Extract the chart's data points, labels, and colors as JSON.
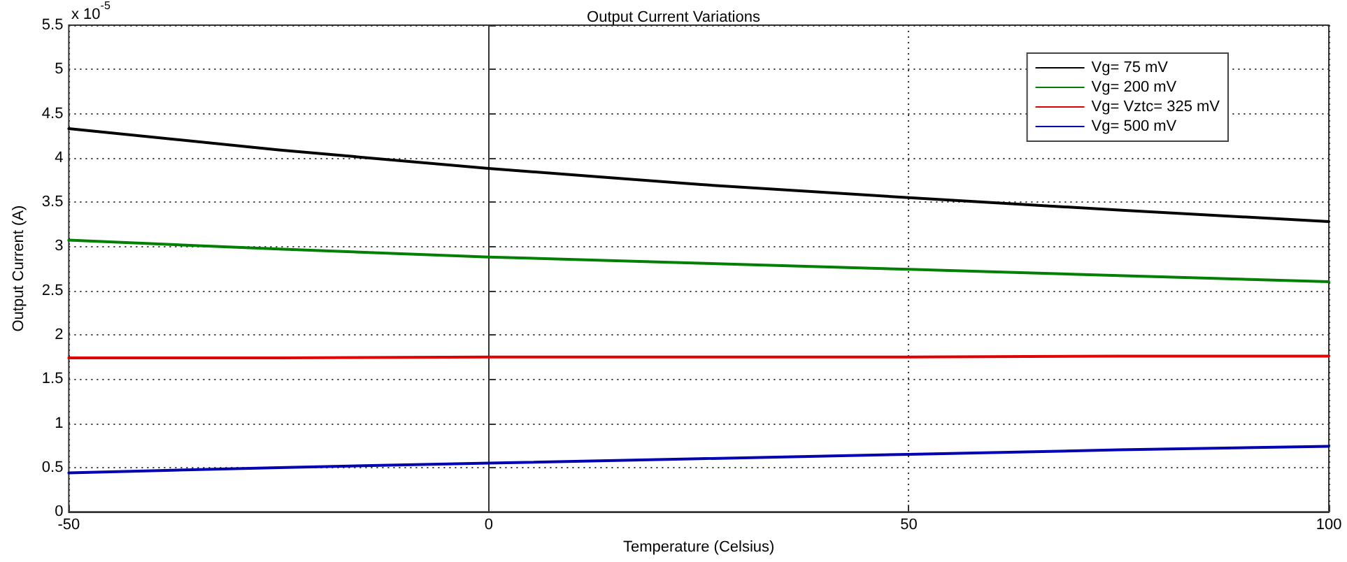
{
  "chart_data": {
    "type": "line",
    "title": "Output Current Variations",
    "xlabel": "Temperature (Celsius)",
    "ylabel": "Output Current (A)",
    "annotations": [
      "x 10$^{-5}$"
    ],
    "x": [
      -50,
      -25,
      0,
      25,
      50,
      75,
      100
    ],
    "series": [
      {
        "name": "Vg= 75 mV",
        "color": "#000000",
        "values": [
          4.33,
          4.09,
          3.88,
          3.7,
          3.55,
          3.41,
          3.28
        ]
      },
      {
        "name": "Vg= 200 mV",
        "color": "#007f00",
        "values": [
          3.07,
          2.97,
          2.88,
          2.81,
          2.74,
          2.67,
          2.6
        ]
      },
      {
        "name": "Vg= Vztc= 325 mV",
        "color": "#e00000",
        "values": [
          1.74,
          1.74,
          1.75,
          1.75,
          1.75,
          1.76,
          1.76
        ]
      },
      {
        "name": "Vg= 500 mV",
        "color": "#0000b0",
        "values": [
          0.44,
          0.5,
          0.55,
          0.6,
          0.65,
          0.7,
          0.74
        ]
      }
    ],
    "xlim": [
      -50,
      100
    ],
    "xticks": [
      -50,
      0,
      50,
      100
    ],
    "ylim": [
      0,
      5.5
    ],
    "yticks": [
      0,
      0.5,
      1,
      1.5,
      2,
      2.5,
      3,
      3.5,
      4,
      4.5,
      5,
      5.5
    ],
    "grid": true,
    "legend": "top right",
    "marker": "none",
    "line_style": "solid"
  }
}
